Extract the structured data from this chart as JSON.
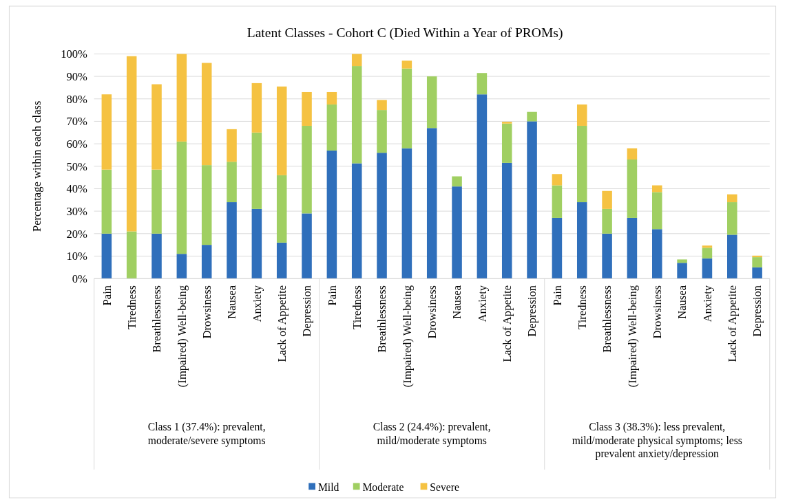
{
  "chart_data": {
    "type": "bar",
    "stacked": true,
    "title": "Latent Classes - Cohort C (Died Within a Year of PROMs)",
    "ylabel": "Percentage within each class",
    "categories": [
      "Pain",
      "Tiredness",
      "Breathlessness",
      "(Impaired) Well-being",
      "Drowsiness",
      "Nausea",
      "Anxiety",
      "Lack of Appetite",
      "Depression",
      "Pain",
      "Tiredness",
      "Breathlessness",
      "(Impaired) Well-being",
      "Drowsiness",
      "Nausea",
      "Anxiety",
      "Lack of Appetite",
      "Depression",
      "Pain",
      "Tiredness",
      "Breathlessness",
      "(Impaired) Well-being",
      "Drowsiness",
      "Nausea",
      "Anxiety",
      "Lack of Appetite",
      "Depression"
    ],
    "series": [
      {
        "name": "Mild",
        "color": "#2f6fbb",
        "values": [
          20,
          0,
          20,
          11,
          15,
          34,
          31,
          16,
          29,
          57,
          51.3,
          56,
          58,
          67,
          41,
          82,
          51.5,
          70,
          27,
          34,
          20,
          27,
          22,
          7,
          9,
          19.5,
          5
        ]
      },
      {
        "name": "Moderate",
        "color": "#a0cf62",
        "values": [
          28.5,
          21,
          28.5,
          50,
          35.5,
          18,
          34,
          30,
          39,
          20.5,
          43.3,
          19,
          35.5,
          23,
          4.5,
          9.5,
          17.5,
          4.2,
          14.5,
          34,
          11,
          26,
          16.5,
          1.5,
          4.7,
          14.5,
          4.5
        ]
      },
      {
        "name": "Severe",
        "color": "#f5c242",
        "values": [
          33.5,
          78,
          38,
          39,
          45.5,
          14.5,
          22,
          39.5,
          15,
          5.5,
          5.4,
          4.5,
          3.5,
          0,
          0,
          0,
          0.8,
          0,
          5,
          9.5,
          8,
          5,
          3,
          0,
          1,
          3.5,
          0.7
        ]
      }
    ],
    "ylim": [
      0,
      100
    ],
    "yticks": [
      {
        "value": 0,
        "label": "0%"
      },
      {
        "value": 10,
        "label": "10%"
      },
      {
        "value": 20,
        "label": "20%"
      },
      {
        "value": 30,
        "label": "30%"
      },
      {
        "value": 40,
        "label": "40%"
      },
      {
        "value": 50,
        "label": "50%"
      },
      {
        "value": 60,
        "label": "60%"
      },
      {
        "value": 70,
        "label": "70%"
      },
      {
        "value": 80,
        "label": "80%"
      },
      {
        "value": 90,
        "label": "90%"
      },
      {
        "value": 100,
        "label": "100%"
      }
    ],
    "grid": "y",
    "legend": "bottom",
    "annotations": [
      "Class 1 (37.4%): prevalent, moderate/severe symptoms",
      "Class 2 (24.4%): prevalent, mild/moderate symptoms",
      "Class 3 (38.3%): less prevalent, mild/moderate physical symptoms; less prevalent anxiety/depression"
    ]
  }
}
